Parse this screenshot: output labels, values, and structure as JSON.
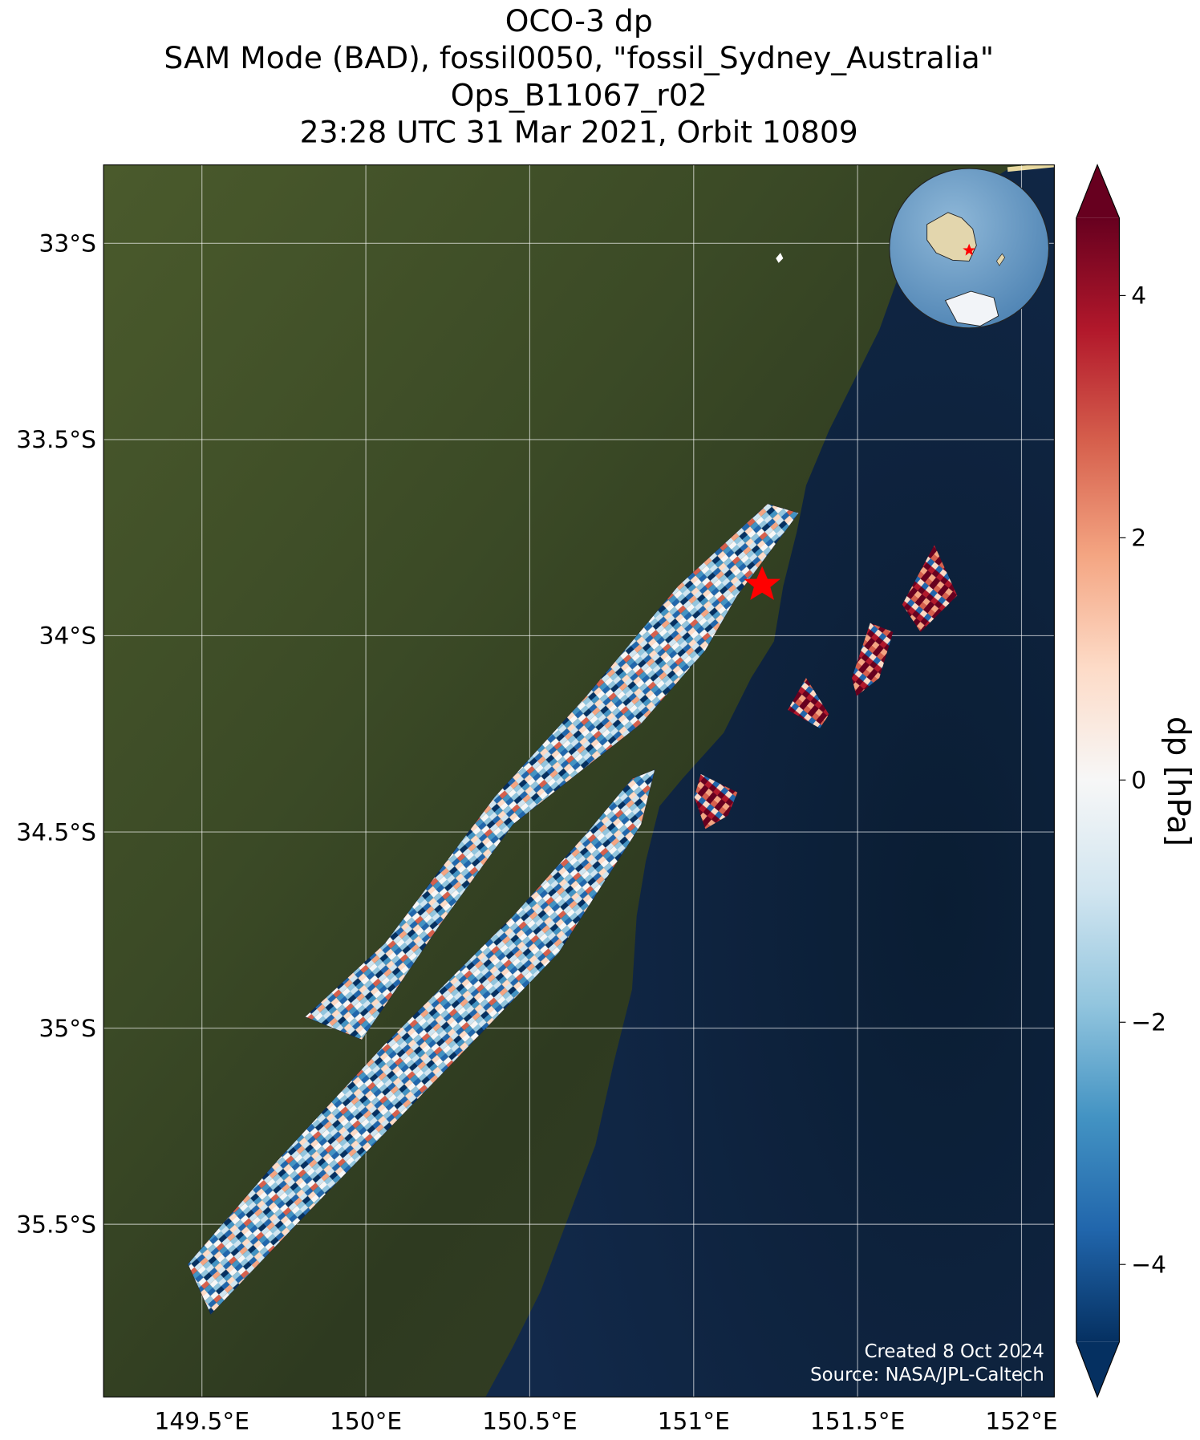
{
  "chart_data": {
    "type": "map",
    "title": [
      "OCO-3 dp",
      "SAM Mode (BAD), fossil0050, \"fossil_Sydney_Australia\"",
      "Ops_B11067_r02",
      "23:28 UTC 31 Mar 2021, Orbit 10809"
    ],
    "xlim": [
      149.2,
      152.1
    ],
    "ylim": [
      -35.94,
      -32.8
    ],
    "xticks": [
      {
        "value": 149.5,
        "label": "149.5°E"
      },
      {
        "value": 150,
        "label": "150°E"
      },
      {
        "value": 150.5,
        "label": "150.5°E"
      },
      {
        "value": 151,
        "label": "151°E"
      },
      {
        "value": 151.5,
        "label": "151.5°E"
      },
      {
        "value": 152,
        "label": "152°E"
      }
    ],
    "yticks": [
      {
        "value": -33,
        "label": "33°S"
      },
      {
        "value": -33.5,
        "label": "33.5°S"
      },
      {
        "value": -34,
        "label": "34°S"
      },
      {
        "value": -34.5,
        "label": "34.5°S"
      },
      {
        "value": -35,
        "label": "35°S"
      },
      {
        "value": -35.5,
        "label": "35.5°S"
      }
    ],
    "grid": true,
    "colorbar": {
      "label": "dp [hPa]",
      "lim": [
        -4.64,
        4.64
      ],
      "ticks": [
        {
          "value": -4,
          "label": "−4"
        },
        {
          "value": -2,
          "label": "−2"
        },
        0,
        2,
        4
      ]
    },
    "annotations": [
      "Created 8 Oct 2024",
      "Source: NASA/JPL-Caltech"
    ]
  }
}
